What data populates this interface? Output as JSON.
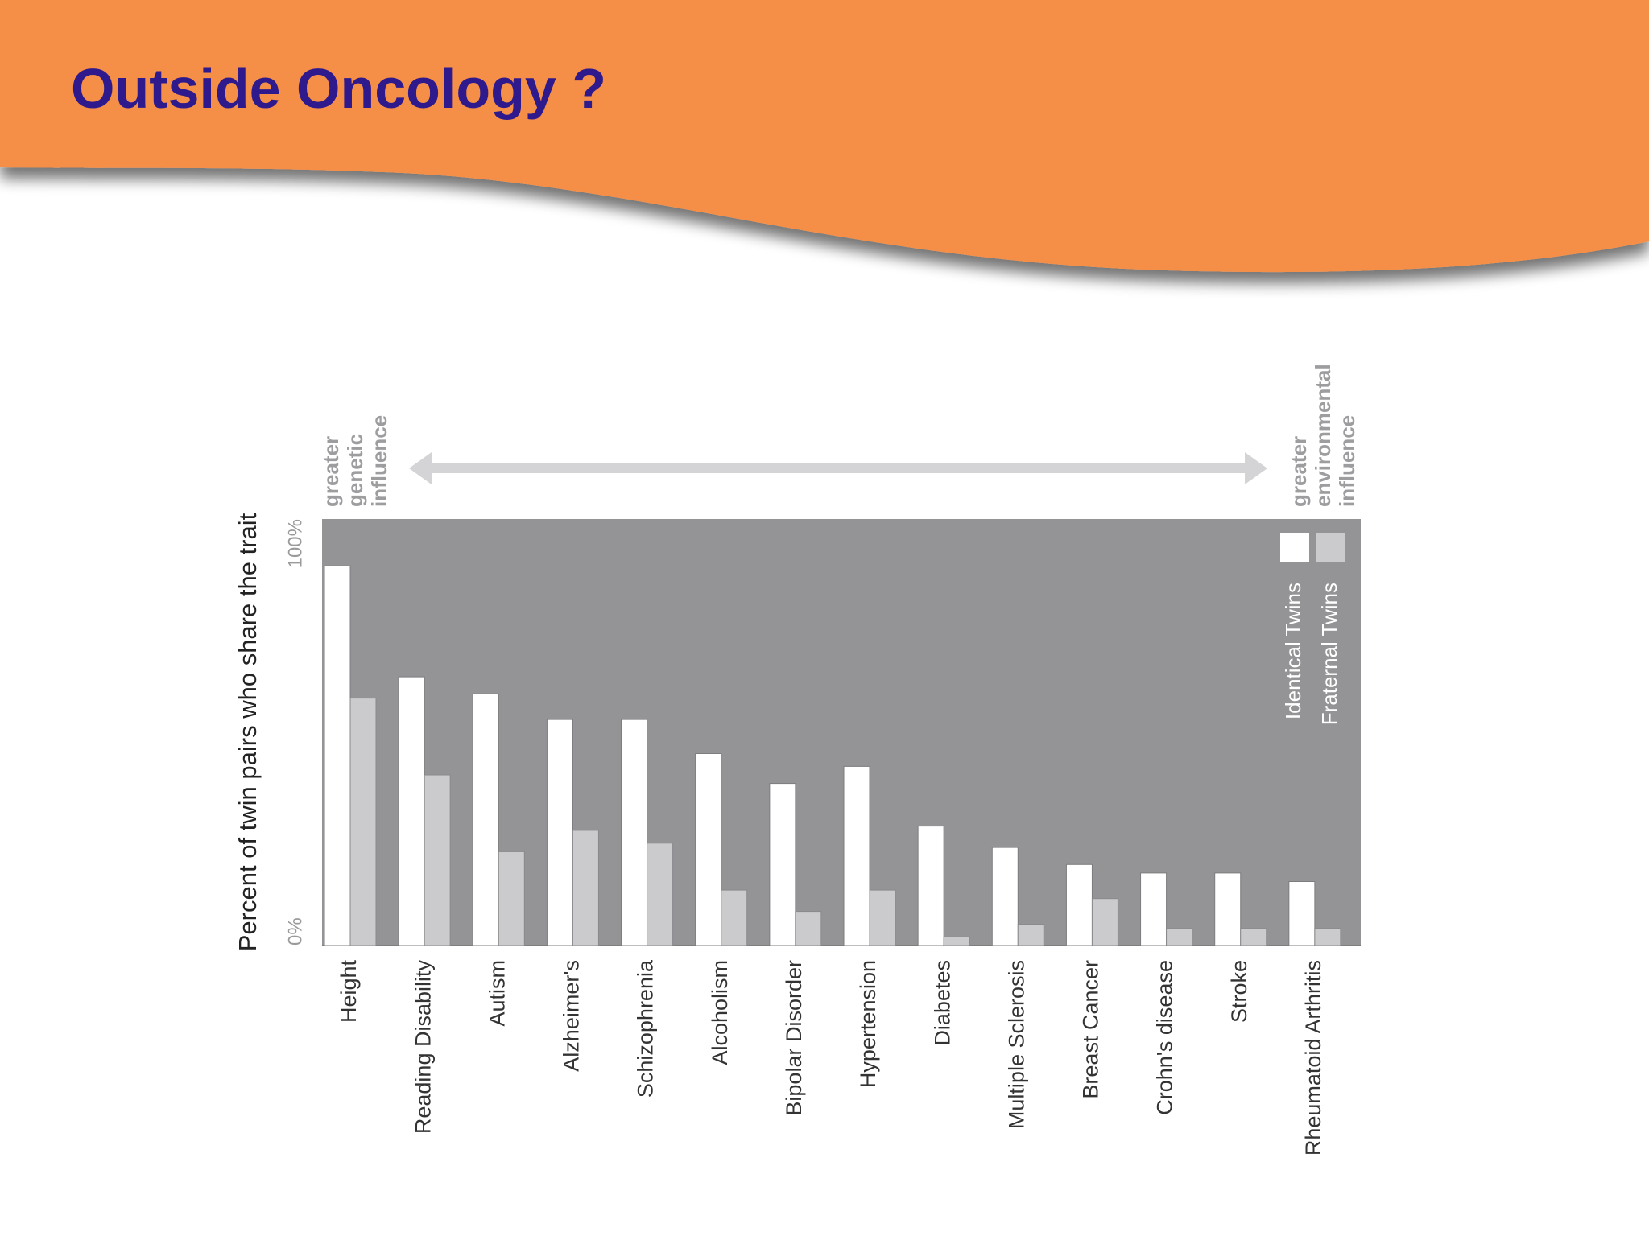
{
  "slide": {
    "title": "Outside Oncology ?",
    "banner_color": "#f58e46",
    "title_color": "#2e1a8c"
  },
  "chart_data": {
    "type": "bar",
    "title": "",
    "ylabel": "Percent of twin pairs who share the trait",
    "ylim": [
      0,
      100
    ],
    "yticks": [
      "0%",
      "100%"
    ],
    "categories": [
      "Height",
      "Reading Disability",
      "Autism",
      "Alzheimer's",
      "Schizophrenia",
      "Alcoholism",
      "Bipolar Disorder",
      "Hypertension",
      "Diabetes",
      "Multiple Sclerosis",
      "Breast Cancer",
      "Crohn's disease",
      "Stroke",
      "Rheumatoid Arthritis"
    ],
    "series": [
      {
        "name": "Identical Twins",
        "color": "#ffffff",
        "values": [
          89,
          63,
          59,
          53,
          53,
          45,
          38,
          42,
          28,
          23,
          19,
          17,
          17,
          15
        ]
      },
      {
        "name": "Fraternal Twins",
        "color": "#cbcbcd",
        "values": [
          58,
          40,
          22,
          27,
          24,
          13,
          8,
          13,
          2,
          5,
          11,
          4,
          4,
          4
        ]
      }
    ],
    "plot_background": "#949497",
    "legend_position": "top-right",
    "annotations": {
      "left": [
        "greater",
        "genetic",
        "influence"
      ],
      "right": [
        "greater",
        "environmental",
        "influence"
      ]
    },
    "grid": false
  }
}
